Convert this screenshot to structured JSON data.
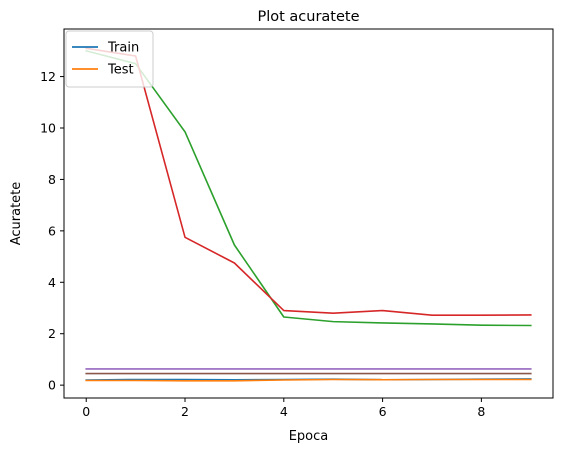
{
  "chart_data": {
    "type": "line",
    "title": "Plot acuratete",
    "xlabel": "Epoca",
    "ylabel": "Acuratete",
    "xlim": [
      -0.45,
      9.45
    ],
    "ylim": [
      -0.5,
      13.85
    ],
    "xticks": [
      0,
      2,
      4,
      6,
      8
    ],
    "yticks": [
      0,
      2,
      4,
      6,
      8,
      10,
      12
    ],
    "x": [
      0,
      1,
      2,
      3,
      4,
      5,
      6,
      7,
      8,
      9
    ],
    "grid": false,
    "legend_position": "top-left",
    "series": [
      {
        "name": "Train",
        "color": "#1f77b4",
        "values": [
          0.2,
          0.22,
          0.22,
          0.21,
          0.22,
          0.23,
          0.21,
          0.22,
          0.23,
          0.24
        ],
        "in_legend": true
      },
      {
        "name": "Test",
        "color": "#ff7f0e",
        "values": [
          0.18,
          0.18,
          0.17,
          0.17,
          0.2,
          0.22,
          0.21,
          0.22,
          0.22,
          0.22
        ],
        "in_legend": true
      },
      {
        "color": "#2ca02c",
        "values": [
          13.0,
          12.5,
          9.85,
          5.45,
          2.65,
          2.47,
          2.42,
          2.38,
          2.33,
          2.32
        ],
        "in_legend": false
      },
      {
        "color": "#d62728",
        "values": [
          13.1,
          12.8,
          5.75,
          4.75,
          2.9,
          2.8,
          2.9,
          2.72,
          2.72,
          2.73
        ],
        "in_legend": false
      },
      {
        "color": "#9467bd",
        "values": [
          0.63,
          0.63,
          0.63,
          0.63,
          0.63,
          0.63,
          0.63,
          0.63,
          0.63,
          0.63
        ],
        "in_legend": false
      },
      {
        "color": "#8c564b",
        "values": [
          0.45,
          0.45,
          0.45,
          0.45,
          0.45,
          0.45,
          0.45,
          0.45,
          0.45,
          0.45
        ],
        "in_legend": false
      }
    ]
  }
}
